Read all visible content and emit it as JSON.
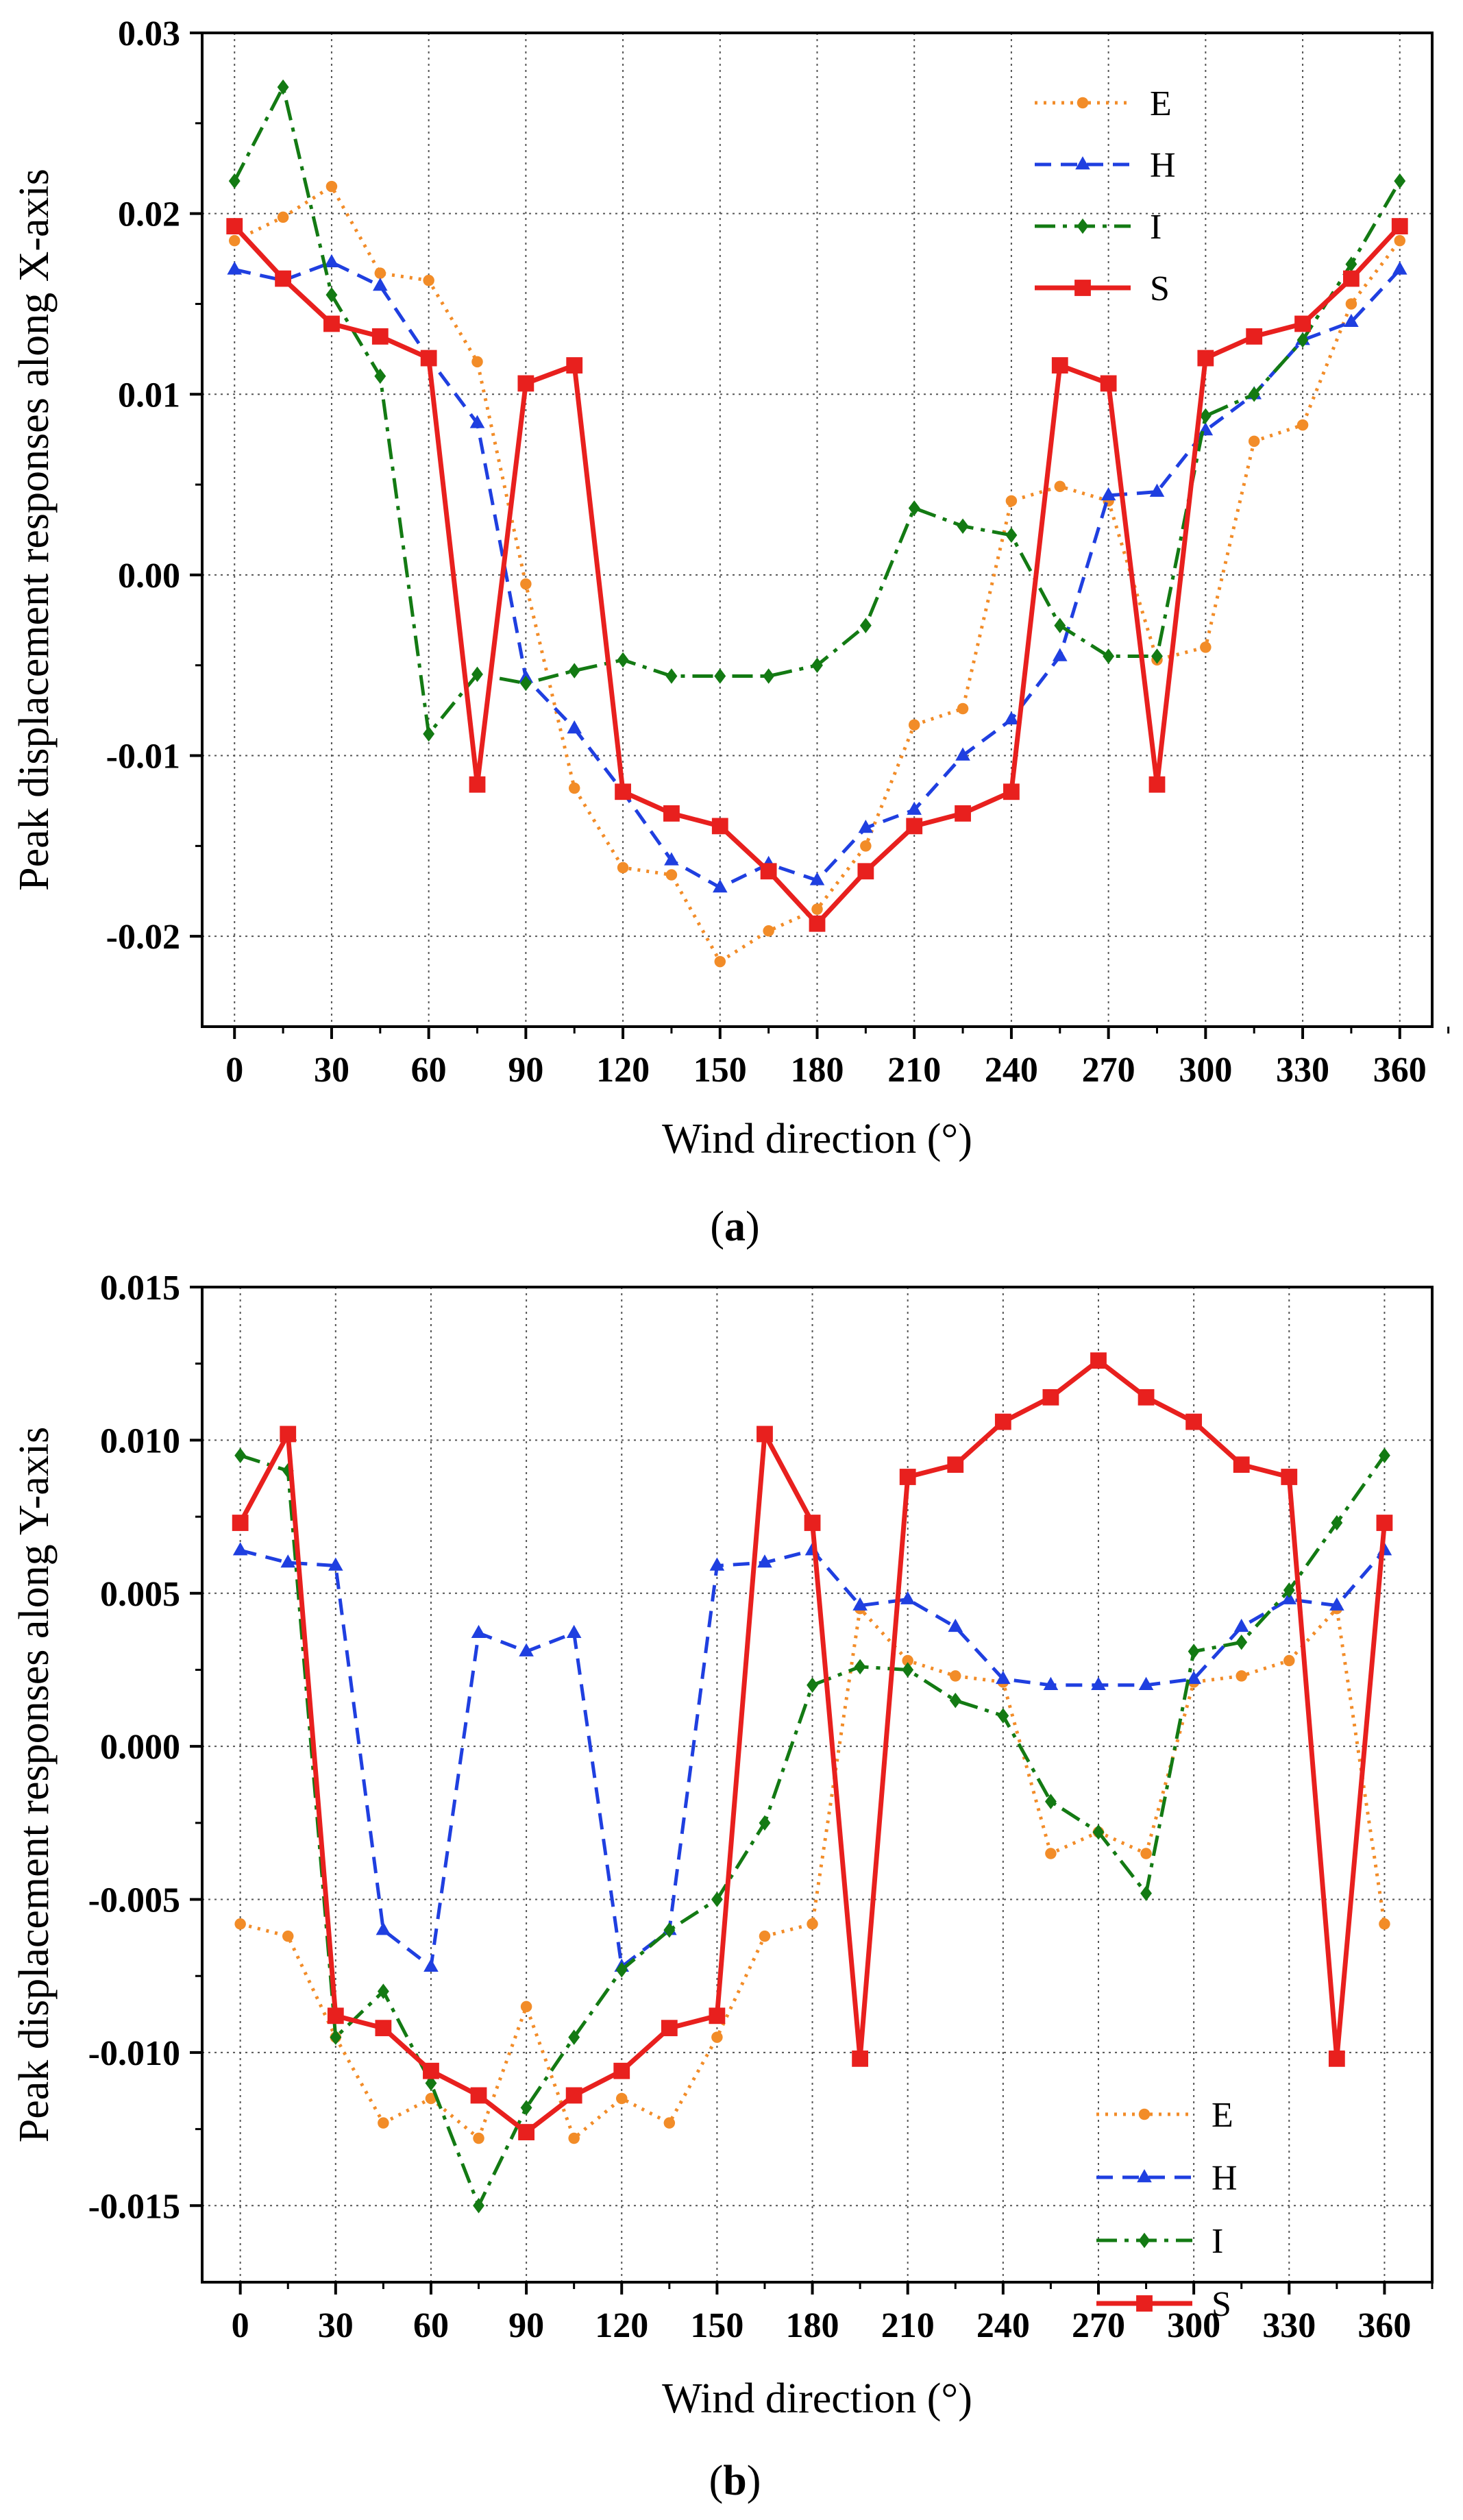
{
  "chart_data": [
    {
      "type": "line",
      "caption": "(a)",
      "caption_letter": "a",
      "xlabel": "Wind direction (°)",
      "ylabel": "Peak displacement responses along X-axis",
      "xlim": [
        -10,
        370
      ],
      "ylim": [
        -0.025,
        0.03
      ],
      "xticks": [
        0,
        30,
        60,
        90,
        120,
        150,
        180,
        210,
        240,
        270,
        300,
        330,
        360
      ],
      "xtick_labels": [
        "0",
        "30",
        "60",
        "90",
        "120",
        "150",
        "180",
        "210",
        "240",
        "270",
        "300",
        "330",
        "360"
      ],
      "yticks": [
        0.03,
        0.02,
        0.01,
        0.0,
        -0.01,
        -0.02
      ],
      "ytick_labels": [
        "0.03",
        "0.02",
        "0.01",
        "0.00",
        "-0.01",
        "-0.02"
      ],
      "grid": true,
      "legend_position": "top-right",
      "x": [
        0,
        15,
        30,
        45,
        60,
        75,
        90,
        105,
        120,
        135,
        150,
        165,
        180,
        195,
        210,
        225,
        240,
        255,
        270,
        285,
        300,
        315,
        330,
        345,
        360
      ],
      "series": [
        {
          "name": "E",
          "color": "#f28c28",
          "dash": "dotted",
          "marker": "circle",
          "values": [
            0.0185,
            0.0198,
            0.0215,
            0.0167,
            0.0163,
            0.0118,
            -0.0005,
            -0.0118,
            -0.0162,
            -0.0166,
            -0.0214,
            -0.0197,
            -0.0185,
            -0.015,
            -0.0083,
            -0.0074,
            0.0041,
            0.0049,
            0.0041,
            -0.0047,
            -0.004,
            0.0074,
            0.0083,
            0.015,
            0.0185
          ]
        },
        {
          "name": "H",
          "color": "#1f3fe0",
          "dash": "dashed",
          "marker": "triangle",
          "values": [
            0.0169,
            0.0163,
            0.0173,
            0.016,
            0.012,
            0.0084,
            -0.0057,
            -0.0085,
            -0.012,
            -0.0158,
            -0.0173,
            -0.016,
            -0.0169,
            -0.014,
            -0.013,
            -0.01,
            -0.008,
            -0.0045,
            0.0044,
            0.0046,
            0.008,
            0.01,
            0.013,
            0.014,
            0.0169
          ]
        },
        {
          "name": "I",
          "color": "#137a13",
          "dash": "dashdot",
          "marker": "diamond",
          "values": [
            0.0218,
            0.027,
            0.0155,
            0.011,
            -0.0088,
            -0.0055,
            -0.006,
            -0.0053,
            -0.0047,
            -0.0056,
            -0.0056,
            -0.0056,
            -0.005,
            -0.0028,
            0.0037,
            0.0027,
            0.0022,
            -0.0028,
            -0.0045,
            -0.0045,
            0.0088,
            0.01,
            0.013,
            0.0172,
            0.0218
          ]
        },
        {
          "name": "S",
          "color": "#e8201e",
          "dash": "solid",
          "marker": "square",
          "values": [
            0.0193,
            0.0164,
            0.0139,
            0.0132,
            0.012,
            -0.0116,
            0.0106,
            0.0116,
            -0.012,
            -0.0132,
            -0.0139,
            -0.0164,
            -0.0193,
            -0.0164,
            -0.0139,
            -0.0132,
            -0.012,
            0.0116,
            0.0106,
            -0.0116,
            0.012,
            0.0132,
            0.0139,
            0.0164,
            0.0193
          ]
        }
      ]
    },
    {
      "type": "line",
      "caption": "(b)",
      "caption_letter": "b",
      "xlabel": "Wind direction (°)",
      "ylabel": "Peak displacement responses along Y-axis",
      "xlim": [
        -12,
        375
      ],
      "ylim": [
        -0.0175,
        0.015
      ],
      "xticks": [
        0,
        30,
        60,
        90,
        120,
        150,
        180,
        210,
        240,
        270,
        300,
        330,
        360
      ],
      "xtick_labels": [
        "0",
        "30",
        "60",
        "90",
        "120",
        "150",
        "180",
        "210",
        "240",
        "270",
        "300",
        "330",
        "360"
      ],
      "yticks": [
        0.015,
        0.01,
        0.005,
        0.0,
        -0.005,
        -0.01,
        -0.015
      ],
      "ytick_labels": [
        "0.015",
        "0.010",
        "0.005",
        "0.000",
        "-0.005",
        "-0.010",
        "-0.015"
      ],
      "grid": true,
      "legend_position": "bottom-right",
      "x": [
        0,
        15,
        30,
        45,
        60,
        75,
        90,
        105,
        120,
        135,
        150,
        165,
        180,
        195,
        210,
        225,
        240,
        255,
        270,
        285,
        300,
        315,
        330,
        345,
        360
      ],
      "series": [
        {
          "name": "E",
          "color": "#f28c28",
          "dash": "dotted",
          "marker": "circle",
          "values": [
            -0.0058,
            -0.0062,
            -0.0095,
            -0.0123,
            -0.0115,
            -0.0128,
            -0.0085,
            -0.0128,
            -0.0115,
            -0.0123,
            -0.0095,
            -0.0062,
            -0.0058,
            0.0045,
            0.0028,
            0.0023,
            0.0021,
            -0.0035,
            -0.0028,
            -0.0035,
            0.0021,
            0.0023,
            0.0028,
            0.0045,
            -0.0058
          ]
        },
        {
          "name": "H",
          "color": "#1f3fe0",
          "dash": "dashed",
          "marker": "triangle",
          "values": [
            0.0064,
            0.006,
            0.0059,
            -0.006,
            -0.0072,
            0.0037,
            0.0031,
            0.0037,
            -0.0072,
            -0.006,
            0.0059,
            0.006,
            0.0064,
            0.0046,
            0.0048,
            0.0039,
            0.0022,
            0.002,
            0.002,
            0.002,
            0.0022,
            0.0039,
            0.0048,
            0.0046,
            0.0064
          ]
        },
        {
          "name": "I",
          "color": "#137a13",
          "dash": "dashdot",
          "marker": "diamond",
          "values": [
            0.0095,
            0.009,
            -0.0095,
            -0.008,
            -0.011,
            -0.015,
            -0.0118,
            -0.0095,
            -0.0073,
            -0.006,
            -0.005,
            -0.0025,
            0.002,
            0.0026,
            0.0025,
            0.0015,
            0.001,
            -0.0018,
            -0.0028,
            -0.0048,
            0.0031,
            0.0034,
            0.0051,
            0.0073,
            0.0095
          ]
        },
        {
          "name": "S",
          "color": "#e8201e",
          "dash": "solid",
          "marker": "square",
          "values": [
            0.0073,
            0.0102,
            -0.0088,
            -0.0092,
            -0.0106,
            -0.0114,
            -0.0126,
            -0.0114,
            -0.0106,
            -0.0092,
            -0.0088,
            0.0102,
            0.0073,
            -0.0102,
            0.0088,
            0.0092,
            0.0106,
            0.0114,
            0.0126,
            0.0114,
            0.0106,
            0.0092,
            0.0088,
            -0.0102,
            0.0073
          ]
        }
      ]
    }
  ]
}
